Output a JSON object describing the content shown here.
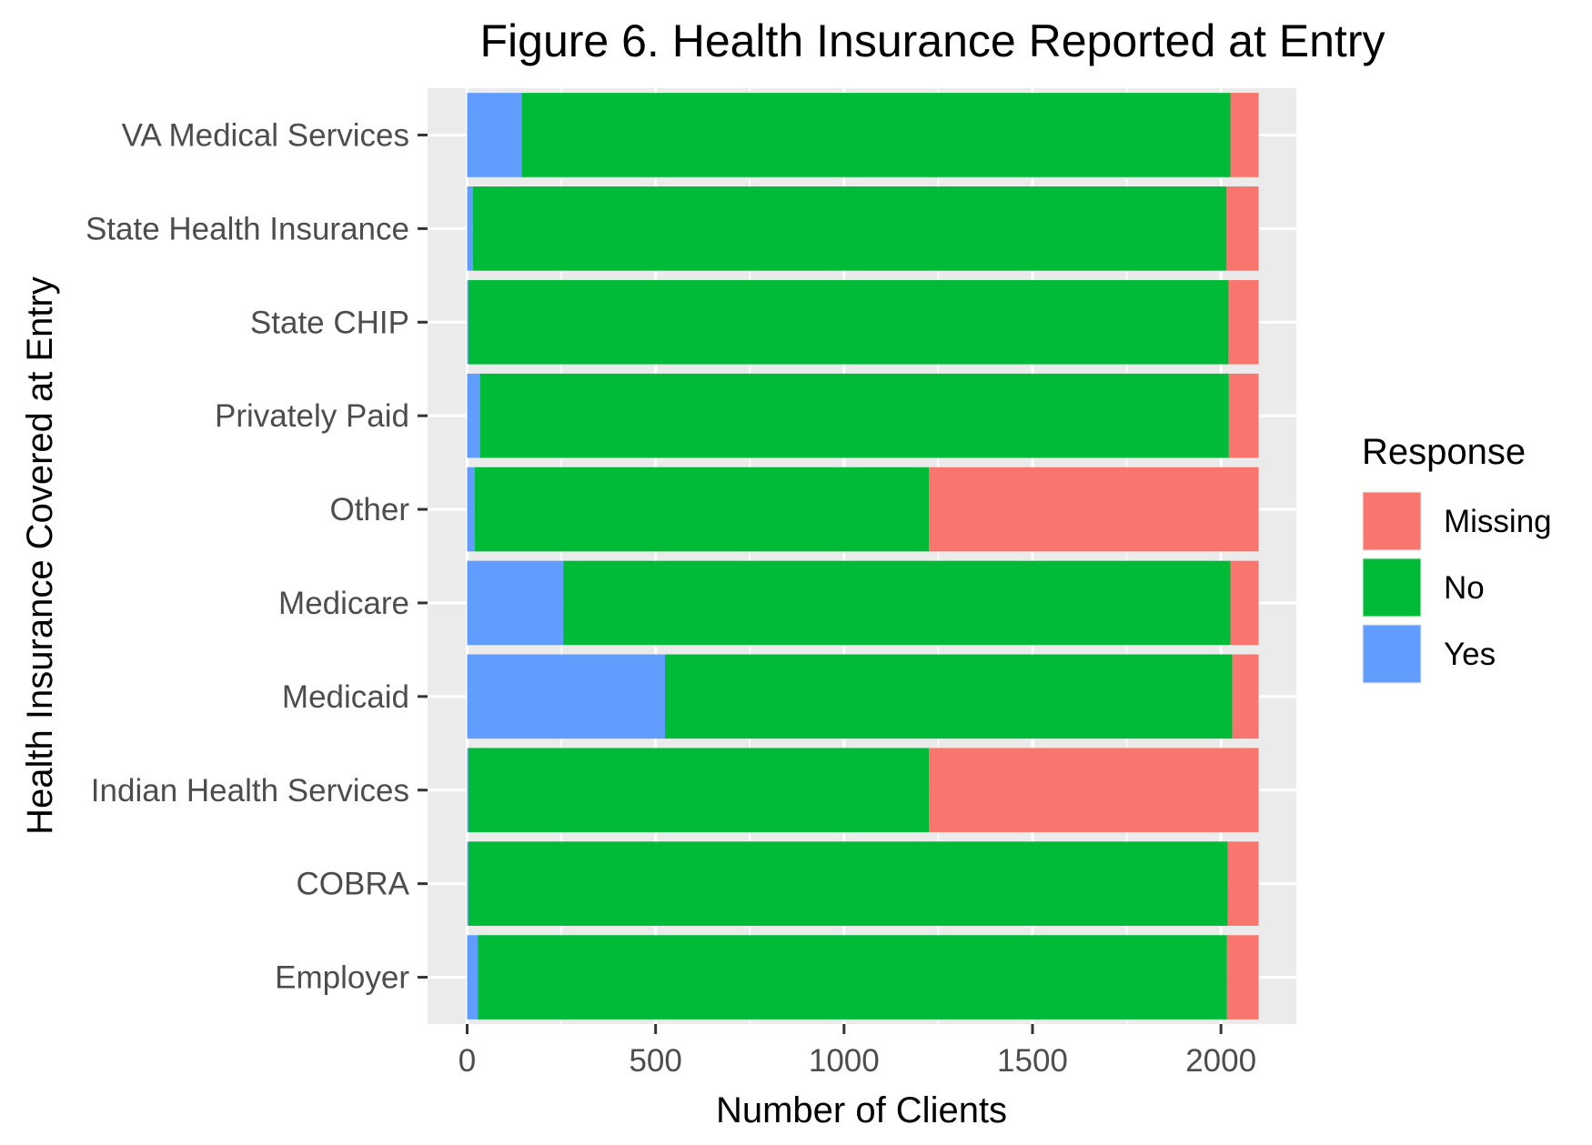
{
  "chart_data": {
    "type": "bar",
    "orientation": "horizontal",
    "stacked": true,
    "title": "Figure 6. Health Insurance Reported at Entry",
    "xlabel": "Number of Clients",
    "ylabel": "Health Insurance Covered at Entry",
    "xlim": [
      -105,
      2200
    ],
    "x_ticks": [
      0,
      500,
      1000,
      1500,
      2000
    ],
    "x_tick_labels": [
      "0",
      "500",
      "1000",
      "1500",
      "2000"
    ],
    "grid": true,
    "categories": [
      "VA Medical Services",
      "State Health Insurance",
      "State CHIP",
      "Privately Paid",
      "Other",
      "Medicare",
      "Medicaid",
      "Indian Health Services",
      "COBRA",
      "Employer"
    ],
    "series": [
      {
        "name": "Yes",
        "color": "#619CFF",
        "values": [
          145,
          15,
          3,
          35,
          20,
          255,
          525,
          3,
          3,
          28
        ]
      },
      {
        "name": "No",
        "color": "#00BA38",
        "values": [
          1880,
          2000,
          2017,
          1986,
          1205,
          1770,
          1505,
          1222,
          2015,
          1988
        ]
      },
      {
        "name": "Missing",
        "color": "#F8766D",
        "values": [
          75,
          85,
          80,
          79,
          875,
          75,
          70,
          875,
          82,
          84
        ]
      }
    ],
    "legend": {
      "title": "Response",
      "placement": "right",
      "entries": [
        "Missing",
        "No",
        "Yes"
      ]
    }
  }
}
